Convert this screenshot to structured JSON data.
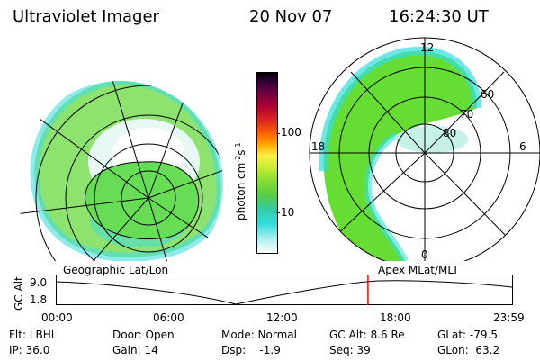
{
  "header": {
    "instrument": "Ultraviolet Imager",
    "date": "20 Nov 07",
    "time": "16:24:30 UT"
  },
  "colorbar": {
    "label": "photon cm",
    "label_sup1": "-2",
    "label_mid": "s",
    "label_sup2": "-1",
    "tick_100": "100",
    "tick_10": "10"
  },
  "right_map": {
    "mlt_top": "12",
    "mlt_left": "18",
    "mlt_right": "6",
    "mlt_bottom": "0",
    "lat_60": "60",
    "lat_70": "70",
    "lat_80": "80"
  },
  "map_labels": {
    "left": "Geographic Lat/Lon",
    "right": "Apex MLat/MLT"
  },
  "orbit_plot": {
    "ylabel": "GC Alt",
    "y_top": "9.0",
    "y_bottom": "1.8",
    "x_ticks": [
      "00:00",
      "06:00",
      "12:00",
      "18:00",
      "23:59"
    ],
    "current_time_marker_hours": 16.41
  },
  "status": {
    "flt": "Flt: LBHL",
    "ip": "IP: 36.0",
    "door": "Door: Open",
    "gain": "Gain: 14",
    "mode": "Mode: Normal",
    "dsp": "Dsp:    -1.9",
    "gc_alt": "GC Alt: 8.6 Re",
    "seq": "Seq: 39",
    "glat": "GLat: -79.5",
    "glon": "GLon:  63.2"
  },
  "colors": {
    "aurora_green": "#66dd33",
    "aurora_cyan": "#33dddd",
    "marker_red": "#ff0000"
  }
}
